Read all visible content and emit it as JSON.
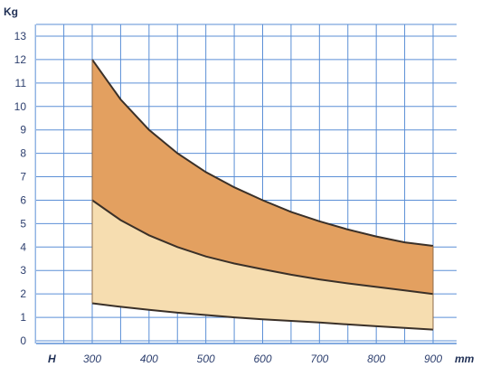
{
  "chart_data": {
    "type": "area",
    "ylabel": "Kg",
    "xlabel": "mm",
    "x_origin_label": "H",
    "xlim": [
      200,
      900
    ],
    "ylim": [
      0,
      13.5
    ],
    "x_ticks": [
      300,
      400,
      500,
      600,
      700,
      800,
      900
    ],
    "y_ticks": [
      0,
      1,
      2,
      3,
      4,
      5,
      6,
      7,
      8,
      9,
      10,
      11,
      12,
      13
    ],
    "grid": true,
    "x_minor_step": 50,
    "y_minor_step": 1,
    "series": [
      {
        "x": [
          300,
          350,
          400,
          450,
          500,
          550,
          600,
          650,
          700,
          750,
          800,
          850,
          900
        ],
        "values": [
          12.0,
          10.3,
          9.0,
          8.0,
          7.2,
          6.55,
          6.0,
          5.5,
          5.1,
          4.75,
          4.45,
          4.2,
          4.05
        ]
      },
      {
        "x": [
          300,
          350,
          400,
          450,
          500,
          550,
          600,
          650,
          700,
          750,
          800,
          850,
          900
        ],
        "values": [
          6.0,
          5.15,
          4.5,
          4.0,
          3.6,
          3.3,
          3.05,
          2.82,
          2.62,
          2.45,
          2.3,
          2.15,
          2.0
        ]
      },
      {
        "x": [
          300,
          350,
          400,
          450,
          500,
          550,
          600,
          650,
          700,
          750,
          800,
          850,
          900
        ],
        "values": [
          1.6,
          1.45,
          1.32,
          1.2,
          1.1,
          1.0,
          0.92,
          0.85,
          0.78,
          0.7,
          0.62,
          0.55,
          0.48
        ]
      }
    ],
    "colors": {
      "upper_band": "#e3a060",
      "lower_band": "#f6ddb0",
      "grid": "#5b8fd6",
      "background": "#ffffff",
      "curve": "#3a3028",
      "tick_text": "#2d3f6e"
    }
  }
}
